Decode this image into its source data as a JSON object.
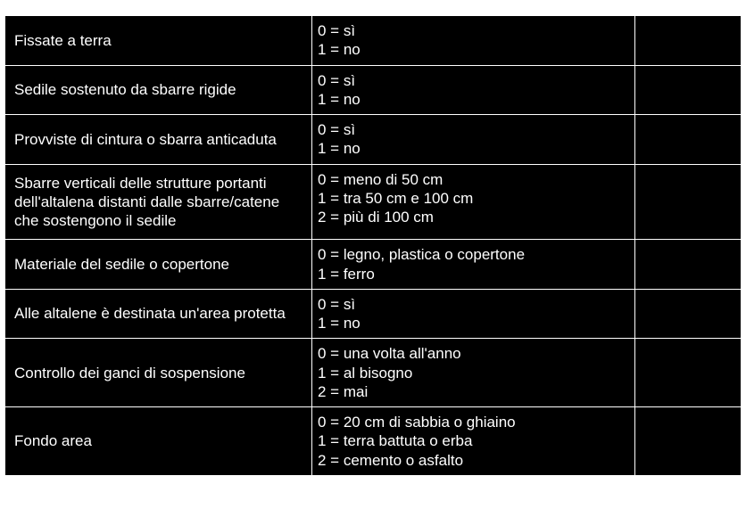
{
  "rows": [
    {
      "label": "Fissate a terra",
      "options": "0 = sì\n1 = no"
    },
    {
      "label": "Sedile sostenuto da sbarre rigide",
      "options": "0 = sì\n1 = no"
    },
    {
      "label": "Provviste di cintura o sbarra anticaduta",
      "options": "0 = sì\n1 = no"
    },
    {
      "label": "Sbarre verticali delle strutture portanti dell'altalena distanti dalle sbarre/catene che sostengono il sedile",
      "options": "0 = meno di 50 cm\n1 = tra 50 cm e 100 cm\n2 = più di 100 cm"
    },
    {
      "label": "Materiale del sedile o copertone",
      "options": "0 = legno, plastica o copertone\n1 = ferro"
    },
    {
      "label": "Alle altalene è destinata un'area protetta",
      "options": "0 = sì\n1 = no"
    },
    {
      "label": "Controllo dei ganci di sospensione",
      "options": "0 = una volta all'anno\n1 = al bisogno\n2 = mai"
    },
    {
      "label": "Fondo area",
      "options": "0 = 20 cm di sabbia o ghiaino\n1 = terra battuta o erba\n2 = cemento o asfalto"
    }
  ]
}
